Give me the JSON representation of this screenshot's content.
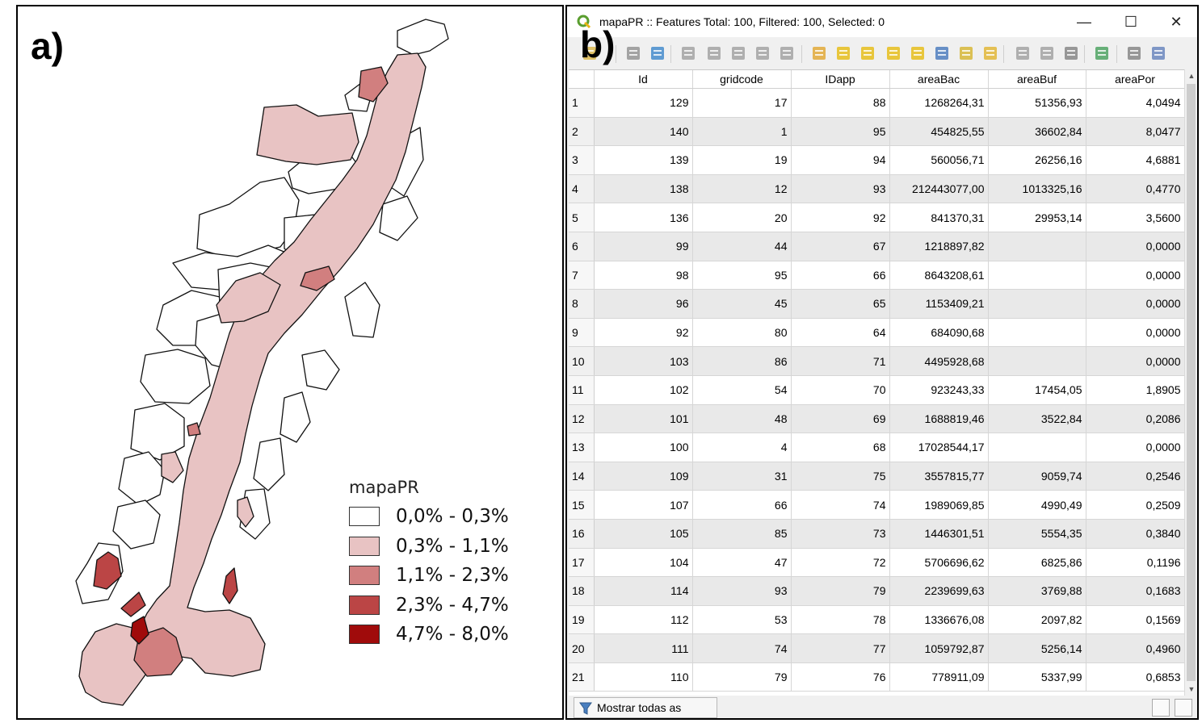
{
  "panel_a": {
    "label": "a)",
    "legend": {
      "title": "mapaPR",
      "classes": [
        {
          "label": "0,0% - 0,3%",
          "color": "#ffffff"
        },
        {
          "label": "0,3% - 1,1%",
          "color": "#e8c3c3"
        },
        {
          "label": "1,1% - 2,3%",
          "color": "#d17f7f"
        },
        {
          "label": "2,3% - 4,7%",
          "color": "#bb4545"
        },
        {
          "label": "4,7% - 8,0%",
          "color": "#a00b0b"
        }
      ]
    }
  },
  "panel_b": {
    "label": "b)",
    "window_title": "mapaPR :: Features Total: 100, Filtered: 100, Selected: 0",
    "window_buttons": {
      "minimize": "—",
      "maximize": "☐",
      "close": "✕"
    },
    "toolbar_icons": [
      "edit-pencil-icon",
      "save-edits-icon",
      "reload-icon",
      "add-feature-icon",
      "delete-feature-icon",
      "cut-icon",
      "copy-icon",
      "paste-icon",
      "expression-select-icon",
      "select-all-icon",
      "invert-selection-icon",
      "deselect-icon",
      "filter-icon",
      "move-selection-top-icon",
      "pan-to-selection-icon",
      "zoom-to-selection-icon",
      "new-field-icon",
      "delete-field-icon",
      "field-calculator-icon",
      "conditional-formatting-icon",
      "dock-table-icon",
      "actions-icon"
    ],
    "columns": [
      "Id",
      "gridcode",
      "IDapp",
      "areaBac",
      "areaBuf",
      "areaPor"
    ],
    "rows": [
      [
        "1",
        "129",
        "17",
        "88",
        "1268264,31",
        "51356,93",
        "4,0494"
      ],
      [
        "2",
        "140",
        "1",
        "95",
        "454825,55",
        "36602,84",
        "8,0477"
      ],
      [
        "3",
        "139",
        "19",
        "94",
        "560056,71",
        "26256,16",
        "4,6881"
      ],
      [
        "4",
        "138",
        "12",
        "93",
        "212443077,00",
        "1013325,16",
        "0,4770"
      ],
      [
        "5",
        "136",
        "20",
        "92",
        "841370,31",
        "29953,14",
        "3,5600"
      ],
      [
        "6",
        "99",
        "44",
        "67",
        "1218897,82",
        "",
        "0,0000"
      ],
      [
        "7",
        "98",
        "95",
        "66",
        "8643208,61",
        "",
        "0,0000"
      ],
      [
        "8",
        "96",
        "45",
        "65",
        "1153409,21",
        "",
        "0,0000"
      ],
      [
        "9",
        "92",
        "80",
        "64",
        "684090,68",
        "",
        "0,0000"
      ],
      [
        "10",
        "103",
        "86",
        "71",
        "4495928,68",
        "",
        "0,0000"
      ],
      [
        "11",
        "102",
        "54",
        "70",
        "923243,33",
        "17454,05",
        "1,8905"
      ],
      [
        "12",
        "101",
        "48",
        "69",
        "1688819,46",
        "3522,84",
        "0,2086"
      ],
      [
        "13",
        "100",
        "4",
        "68",
        "17028544,17",
        "",
        "0,0000"
      ],
      [
        "14",
        "109",
        "31",
        "75",
        "3557815,77",
        "9059,74",
        "0,2546"
      ],
      [
        "15",
        "107",
        "66",
        "74",
        "1989069,85",
        "4990,49",
        "0,2509"
      ],
      [
        "16",
        "105",
        "85",
        "73",
        "1446301,51",
        "5554,35",
        "0,3840"
      ],
      [
        "17",
        "104",
        "47",
        "72",
        "5706696,62",
        "6825,86",
        "0,1196"
      ],
      [
        "18",
        "114",
        "93",
        "79",
        "2239699,63",
        "3769,88",
        "0,1683"
      ],
      [
        "19",
        "112",
        "53",
        "78",
        "1336676,08",
        "2097,82",
        "0,1569"
      ],
      [
        "20",
        "111",
        "74",
        "77",
        "1059792,87",
        "5256,14",
        "0,4960"
      ],
      [
        "21",
        "110",
        "79",
        "76",
        "778911,09",
        "5337,99",
        "0,6853"
      ]
    ],
    "show_all_button": "Mostrar todas as feições"
  }
}
